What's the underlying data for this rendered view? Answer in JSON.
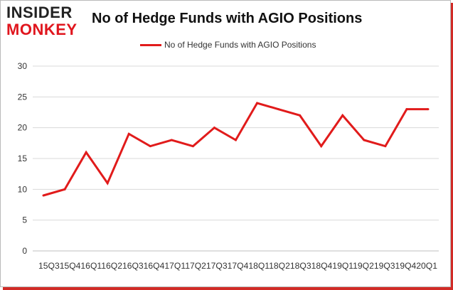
{
  "logo": {
    "line1": "INSIDER",
    "line2": "MONKEY"
  },
  "chart_data": {
    "type": "line",
    "title": "No of Hedge Funds with AGIO Positions",
    "xlabel": "",
    "ylabel": "",
    "categories": [
      "15Q3",
      "15Q4",
      "16Q1",
      "16Q2",
      "16Q3",
      "16Q4",
      "17Q1",
      "17Q2",
      "17Q3",
      "17Q4",
      "18Q1",
      "18Q2",
      "18Q3",
      "18Q4",
      "19Q1",
      "19Q2",
      "19Q3",
      "19Q4",
      "20Q1"
    ],
    "category_label_text": "15Q315Q416Q116Q216Q316Q417Q117Q217Q317Q418Q118Q218Q318Q419Q119Q219Q319Q420Q1",
    "series": [
      {
        "name": "No of Hedge Funds with AGIO Positions",
        "values": [
          9,
          10,
          16,
          11,
          19,
          17,
          18,
          17,
          20,
          18,
          24,
          23,
          22,
          17,
          22,
          18,
          17,
          23,
          23
        ],
        "color": "#e11b1b"
      }
    ],
    "ylim": [
      0,
      30
    ],
    "yticks": [
      0,
      5,
      10,
      15,
      20,
      25,
      30
    ],
    "grid": true,
    "legend_position": "top-center"
  },
  "colors": {
    "line": "#e11b1b",
    "grid": "#d9d9d9",
    "border": "#d12b27"
  }
}
